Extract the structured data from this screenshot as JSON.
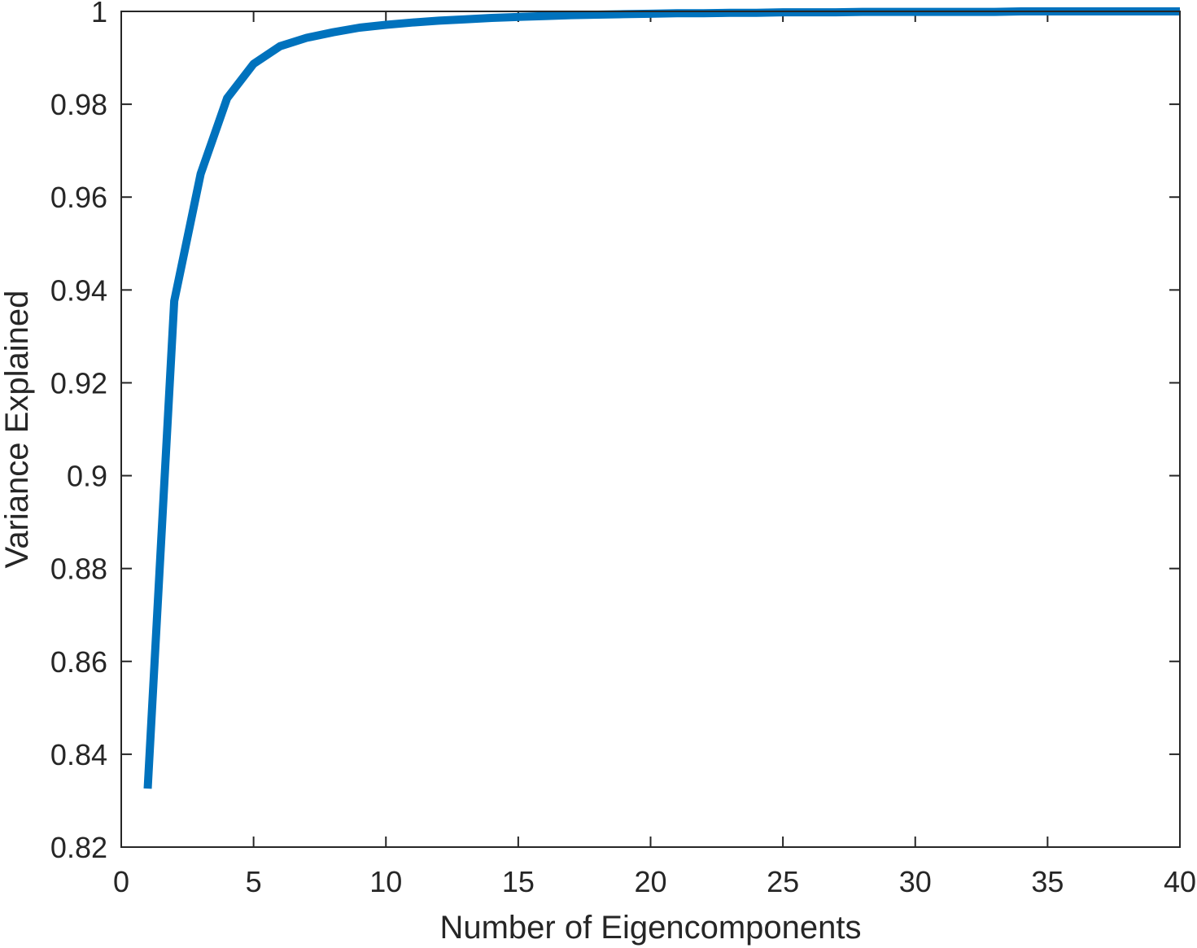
{
  "chart_data": {
    "type": "line",
    "title": "",
    "xlabel": "Number of Eigencomponents",
    "ylabel": "Variance Explained",
    "xlim": [
      0,
      40
    ],
    "ylim": [
      0.82,
      1
    ],
    "xticks": [
      0,
      5,
      10,
      15,
      20,
      25,
      30,
      35,
      40
    ],
    "yticks": [
      0.82,
      0.84,
      0.86,
      0.88,
      0.9,
      0.92,
      0.94,
      0.96,
      0.98,
      1
    ],
    "xtick_labels": [
      "0",
      "5",
      "10",
      "15",
      "20",
      "25",
      "30",
      "35",
      "40"
    ],
    "ytick_labels": [
      "0.82",
      "0.84",
      "0.86",
      "0.88",
      "0.9",
      "0.92",
      "0.94",
      "0.96",
      "0.98",
      "1"
    ],
    "grid": false,
    "box": true,
    "line_color": "#0072BD",
    "axis_color": "#262626",
    "series": [
      {
        "x": [
          1,
          2,
          3,
          4,
          5,
          6,
          7,
          8,
          9,
          10,
          11,
          12,
          13,
          14,
          15,
          16,
          17,
          18,
          19,
          20,
          21,
          22,
          23,
          24,
          25,
          26,
          27,
          28,
          29,
          30,
          31,
          32,
          33,
          34,
          35,
          36,
          37,
          38,
          39,
          40
        ],
        "y": [
          0.8326,
          0.9376,
          0.965,
          0.9813,
          0.9887,
          0.9925,
          0.9943,
          0.9955,
          0.9965,
          0.9971,
          0.9976,
          0.998,
          0.9983,
          0.9986,
          0.9988,
          0.999,
          0.9992,
          0.9993,
          0.9994,
          0.9995,
          0.9996,
          0.9996,
          0.9997,
          0.9997,
          0.9998,
          0.9998,
          0.9998,
          0.9999,
          0.9999,
          0.9999,
          0.9999,
          0.9999,
          0.9999,
          1.0,
          1.0,
          1.0,
          1.0,
          1.0,
          1.0,
          1.0
        ]
      }
    ]
  }
}
